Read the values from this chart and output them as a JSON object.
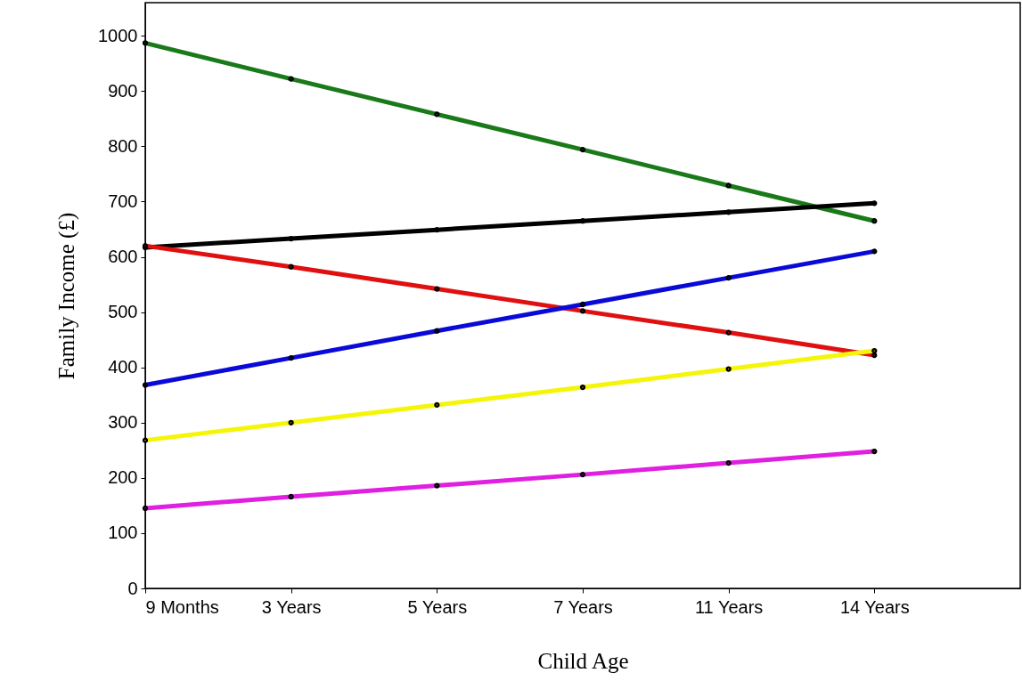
{
  "chart_data": {
    "type": "line",
    "xlabel": "Child Age",
    "ylabel": "Family Income (£)",
    "categories": [
      "9 Months",
      "3 Years",
      "5 Years",
      "7 Years",
      "11 Years",
      "14 Years"
    ],
    "series": [
      {
        "color": "#1a7a1a",
        "values": [
          987,
          922,
          858,
          794,
          729,
          665
        ]
      },
      {
        "color": "#000000",
        "values": [
          617,
          633,
          649,
          665,
          681,
          697
        ]
      },
      {
        "color": "#e01010",
        "values": [
          620,
          582,
          542,
          502,
          463,
          422
        ]
      },
      {
        "color": "#0a0ad8",
        "values": [
          368,
          417,
          466,
          514,
          562,
          610
        ]
      },
      {
        "color": "#f5f50a",
        "values": [
          268,
          300,
          332,
          364,
          397,
          430
        ]
      },
      {
        "color": "#e020e0",
        "values": [
          145,
          166,
          186,
          206,
          227,
          248
        ]
      }
    ],
    "ylim": [
      0,
      1060
    ],
    "yticks": [
      0,
      100,
      200,
      300,
      400,
      500,
      600,
      700,
      800,
      900,
      1000
    ],
    "grid": false,
    "marker": "circle",
    "line_style": "solid"
  }
}
